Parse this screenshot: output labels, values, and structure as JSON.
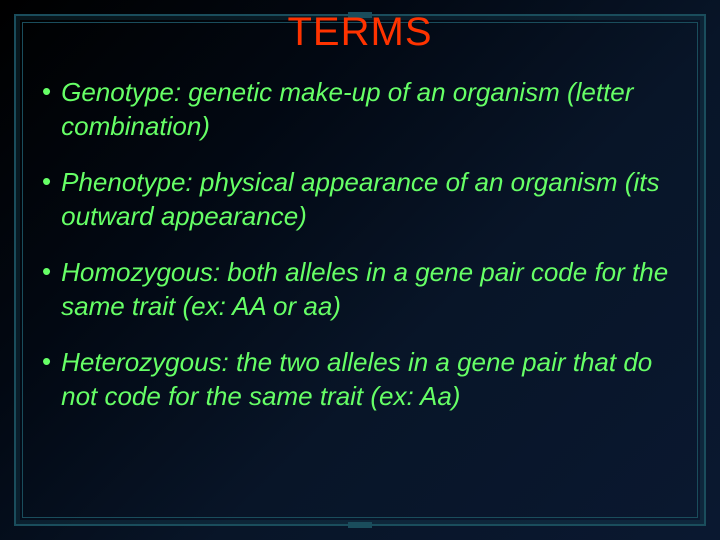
{
  "slide": {
    "title": "TERMS",
    "title_color": "#ff3300",
    "bullet_color": "#66ff66",
    "text_color": "#66ff66",
    "background_gradient": [
      "#000000",
      "#020812",
      "#081528",
      "#0a1830"
    ],
    "frame_color": "#1a4d5c",
    "title_fontsize": 40,
    "bullet_fontsize": 26,
    "bullets": [
      "Genotype: genetic make-up of an organism (letter combination)",
      "Phenotype:  physical appearance of an organism (its outward appearance)",
      "Homozygous: both alleles in a gene pair code for the same trait (ex: AA or aa)",
      "Heterozygous: the two alleles in a gene pair that do not code for the same trait (ex: Aa)"
    ]
  }
}
